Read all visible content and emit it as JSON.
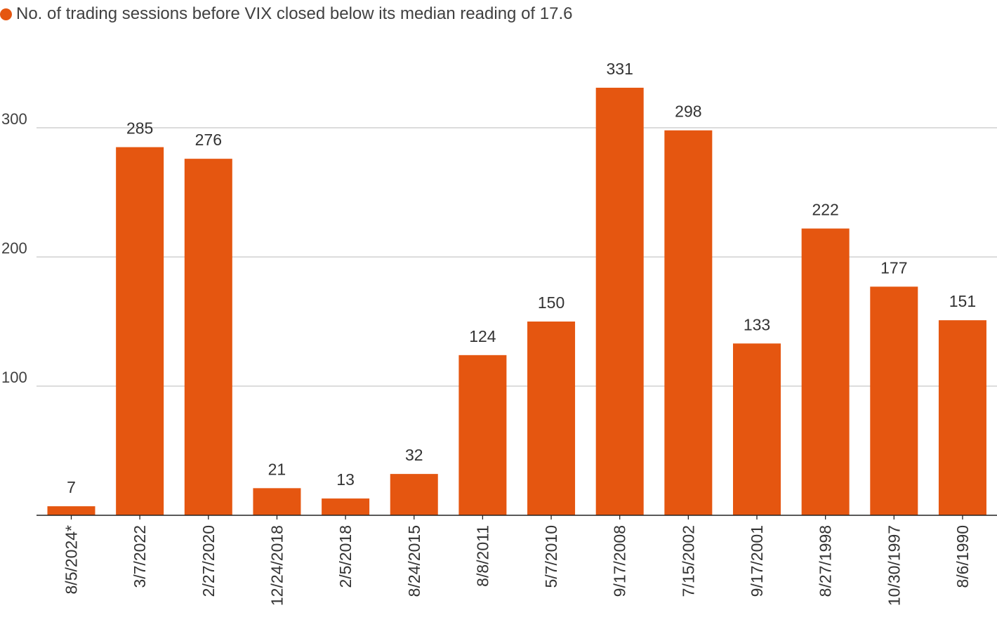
{
  "legend": {
    "label": "No. of trading sessions before VIX closed below its median reading of 17.6",
    "color": "#e55610"
  },
  "chart_data": {
    "type": "bar",
    "categories": [
      "8/5/2024*",
      "3/7/2022",
      "2/27/2020",
      "12/24/2018",
      "2/5/2018",
      "8/24/2015",
      "8/8/2011",
      "5/7/2010",
      "9/17/2008",
      "7/15/2002",
      "9/17/2001",
      "8/27/1998",
      "10/30/1997",
      "8/6/1990"
    ],
    "series": [
      {
        "name": "No. of trading sessions before VIX closed below its median reading of 17.6",
        "values": [
          7,
          285,
          276,
          21,
          13,
          32,
          124,
          150,
          331,
          298,
          133,
          222,
          177,
          151
        ],
        "color": "#e55610"
      }
    ],
    "yticks": [
      100,
      200,
      300
    ],
    "ylim": [
      0,
      331
    ],
    "grid": true,
    "data_labels": true,
    "legend_position": "top-left",
    "colors": {
      "bar": "#e55610",
      "grid": "#c8c8c8",
      "axis": "#222222"
    }
  }
}
